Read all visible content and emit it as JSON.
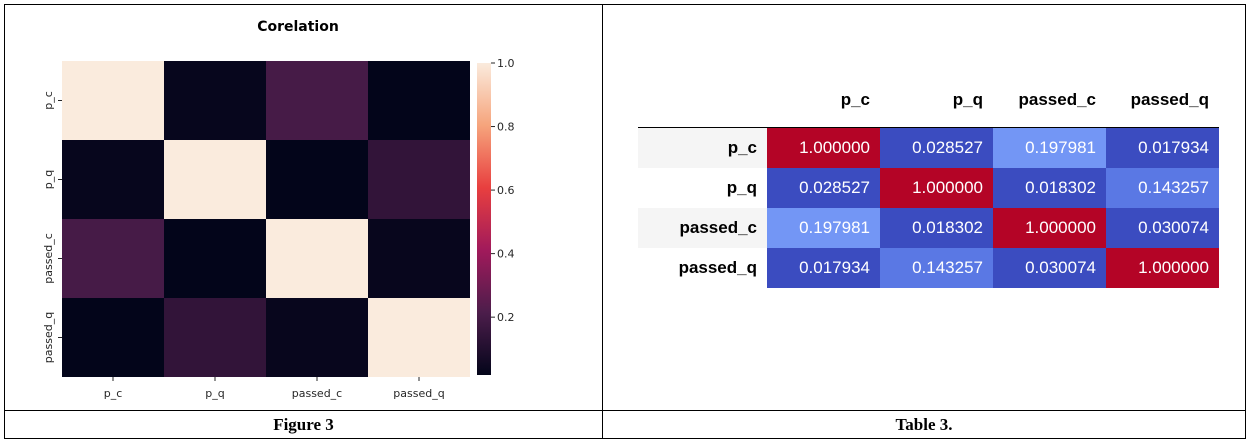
{
  "chart_data": [
    {
      "type": "heatmap",
      "title": "Corelation",
      "x_labels": [
        "p_c",
        "p_q",
        "passed_c",
        "passed_q"
      ],
      "y_labels": [
        "p_c",
        "p_q",
        "passed_c",
        "passed_q"
      ],
      "values": [
        [
          1.0,
          0.028527,
          0.197981,
          0.017934
        ],
        [
          0.028527,
          1.0,
          0.018302,
          0.143257
        ],
        [
          0.197981,
          0.018302,
          1.0,
          0.030074
        ],
        [
          0.017934,
          0.143257,
          0.030074,
          1.0
        ]
      ],
      "colorbar": {
        "min": 0.017934,
        "max": 1.0,
        "ticks": [
          "1.0",
          "0.8",
          "0.6",
          "0.4",
          "0.2"
        ],
        "tick_values": [
          1.0,
          0.8,
          0.6,
          0.4,
          0.2
        ],
        "colormap": "rocket"
      }
    },
    {
      "type": "table",
      "columns": [
        "p_c",
        "p_q",
        "passed_c",
        "passed_q"
      ],
      "rows": [
        {
          "label": "p_c",
          "cells": [
            "1.000000",
            "0.028527",
            "0.197981",
            "0.017934"
          ]
        },
        {
          "label": "p_q",
          "cells": [
            "0.028527",
            "1.000000",
            "0.018302",
            "0.143257"
          ]
        },
        {
          "label": "passed_c",
          "cells": [
            "0.197981",
            "0.018302",
            "1.000000",
            "0.030074"
          ]
        },
        {
          "label": "passed_q",
          "cells": [
            "0.017934",
            "0.143257",
            "0.030074",
            "1.000000"
          ]
        }
      ],
      "cell_colors": {
        "diagonal": "#b40426",
        "low": "#3b4cc0",
        "mid": "#5a78e4",
        "light": "#7396f5"
      }
    }
  ],
  "captions": {
    "left": "Figure 3",
    "right": "Table 3."
  }
}
